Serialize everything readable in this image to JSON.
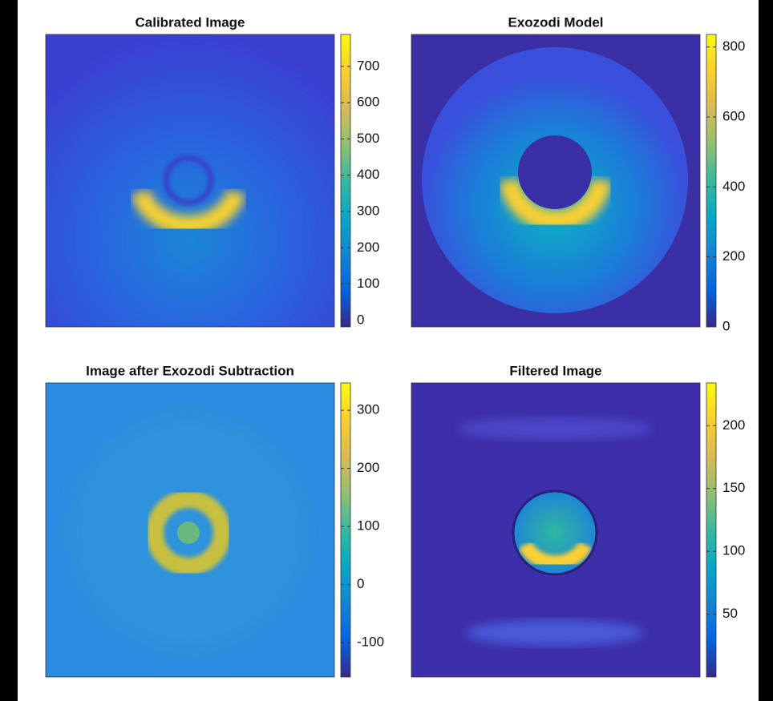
{
  "chart_data": [
    {
      "type": "heatmap",
      "title": "Calibrated Image",
      "colormap": "parula",
      "clim": [
        -18,
        788
      ],
      "cticks": [
        0,
        100,
        200,
        300,
        400,
        500,
        600,
        700
      ]
    },
    {
      "type": "heatmap",
      "title": "Exozodi Model",
      "colormap": "parula",
      "clim": [
        0,
        836
      ],
      "cticks": [
        0,
        200,
        400,
        600,
        800
      ]
    },
    {
      "type": "heatmap",
      "title": "Image after Exozodi Subtraction",
      "colormap": "parula",
      "clim": [
        -159,
        347
      ],
      "cticks": [
        -100,
        0,
        100,
        200,
        300
      ]
    },
    {
      "type": "heatmap",
      "title": "Filtered Image",
      "colormap": "parula",
      "clim": [
        0,
        234
      ],
      "cticks": [
        50,
        100,
        150,
        200
      ]
    }
  ]
}
